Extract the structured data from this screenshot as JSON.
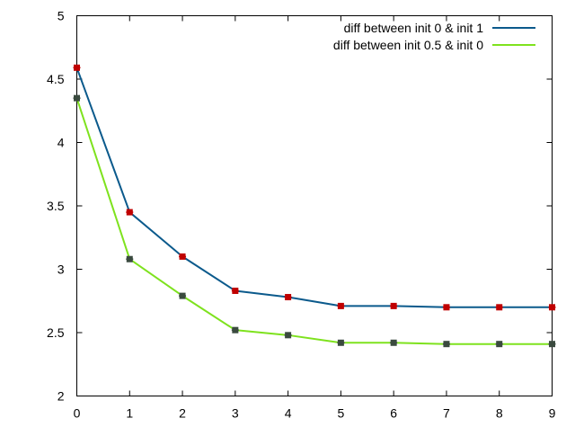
{
  "chart_data": {
    "type": "line",
    "title": "",
    "xlabel": "",
    "ylabel": "",
    "x": [
      0,
      1,
      2,
      3,
      4,
      5,
      6,
      7,
      8,
      9
    ],
    "xlim": [
      0,
      9
    ],
    "ylim": [
      2,
      5
    ],
    "xticks": [
      "0",
      "1",
      "2",
      "3",
      "4",
      "5",
      "6",
      "7",
      "8",
      "9"
    ],
    "yticks": [
      "2",
      "2.5",
      "3",
      "3.5",
      "4",
      "4.5",
      "5"
    ],
    "grid": false,
    "legend_position": "top-right",
    "series": [
      {
        "name": "diff between init 0 & init 1",
        "color": "#0b5a8c",
        "marker_color": "#c00000",
        "values": [
          4.59,
          3.45,
          3.1,
          2.83,
          2.78,
          2.71,
          2.71,
          2.7,
          2.7,
          2.7
        ]
      },
      {
        "name": "diff between init 0.5 & init 0",
        "color": "#7ee21e",
        "marker_color": "#3a4a3f",
        "values": [
          4.35,
          3.08,
          2.79,
          2.52,
          2.48,
          2.42,
          2.42,
          2.41,
          2.41,
          2.41
        ]
      }
    ]
  }
}
